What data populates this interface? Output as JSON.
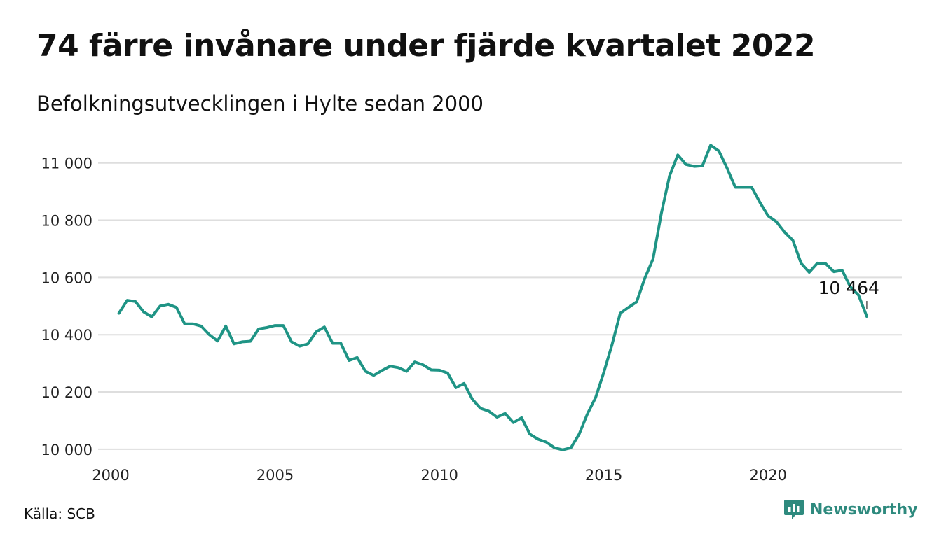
{
  "title": "74 färre invånare under fjärde kvartalet 2022",
  "subtitle": "Befolkningsutvecklingen i Hylte sedan 2000",
  "source": "Källa: SCB",
  "brand": {
    "name": "Newsworthy",
    "icon": "newsworthy-logo-icon",
    "color": "#2e8a7e"
  },
  "chart_data": {
    "type": "line",
    "title": "74 färre invånare under fjärde kvartalet 2022",
    "subtitle": "Befolkningsutvecklingen i Hylte sedan 2000",
    "xlim": [
      2000,
      2023.3
    ],
    "ylim": [
      9985,
      11080
    ],
    "yticks": [
      10000,
      10200,
      10400,
      10600,
      10800,
      11000
    ],
    "ytick_labels": [
      "10 000",
      "10 200",
      "10 400",
      "10 600",
      "10 800",
      "11 000"
    ],
    "xticks": [
      2000,
      2005,
      2010,
      2015,
      2020
    ],
    "xtick_labels": [
      "2000",
      "2005",
      "2010",
      "2015",
      "2020"
    ],
    "grid": true,
    "line_color": "#1f9485",
    "series": [
      {
        "x": [
          2000.25,
          2000.5,
          2000.75,
          2001.0,
          2001.25,
          2001.5,
          2001.75,
          2002.0,
          2002.25,
          2002.5,
          2002.75,
          2003.0,
          2003.25,
          2003.5,
          2003.75,
          2004.0,
          2004.25,
          2004.5,
          2004.75,
          2005.0,
          2005.25,
          2005.5,
          2005.75,
          2006.0,
          2006.25,
          2006.5,
          2006.75,
          2007.0,
          2007.25,
          2007.5,
          2007.75,
          2008.0,
          2008.25,
          2008.5,
          2008.75,
          2009.0,
          2009.25,
          2009.5,
          2009.75,
          2010.0,
          2010.25,
          2010.5,
          2010.75,
          2011.0,
          2011.25,
          2011.5,
          2011.75,
          2012.0,
          2012.25,
          2012.5,
          2012.75,
          2013.0,
          2013.25,
          2013.5,
          2013.75,
          2014.0,
          2014.25,
          2014.5,
          2014.75,
          2015.0,
          2015.25,
          2015.5,
          2015.75,
          2016.0,
          2016.25,
          2016.5,
          2016.75,
          2017.0,
          2017.25,
          2017.5,
          2017.75,
          2018.0,
          2018.25,
          2018.5,
          2018.75,
          2019.0,
          2019.25,
          2019.5,
          2019.75,
          2020.0,
          2020.25,
          2020.5,
          2020.75,
          2021.0,
          2021.25,
          2021.5,
          2021.75,
          2022.0,
          2022.25,
          2022.5,
          2022.75,
          2023.0
        ],
        "values": [
          10475,
          10520,
          10516,
          10480,
          10462,
          10500,
          10506,
          10495,
          10438,
          10438,
          10430,
          10400,
          10378,
          10430,
          10368,
          10375,
          10377,
          10420,
          10425,
          10432,
          10432,
          10375,
          10360,
          10368,
          10410,
          10427,
          10370,
          10370,
          10310,
          10320,
          10272,
          10258,
          10275,
          10290,
          10285,
          10272,
          10305,
          10295,
          10277,
          10276,
          10266,
          10215,
          10230,
          10175,
          10143,
          10133,
          10112,
          10125,
          10093,
          10110,
          10053,
          10035,
          10025,
          10005,
          9998,
          10005,
          10053,
          10123,
          10180,
          10268,
          10365,
          10475,
          10495,
          10515,
          10598,
          10665,
          10823,
          10955,
          11028,
          10995,
          10988,
          10990,
          11062,
          11042,
          10982,
          10915,
          10915,
          10915,
          10862,
          10815,
          10795,
          10758,
          10730,
          10650,
          10618,
          10650,
          10648,
          10620,
          10625,
          10567,
          10538,
          10464
        ]
      }
    ],
    "annotation": {
      "x": 2023.0,
      "value": 10464,
      "label": "10 464"
    }
  }
}
